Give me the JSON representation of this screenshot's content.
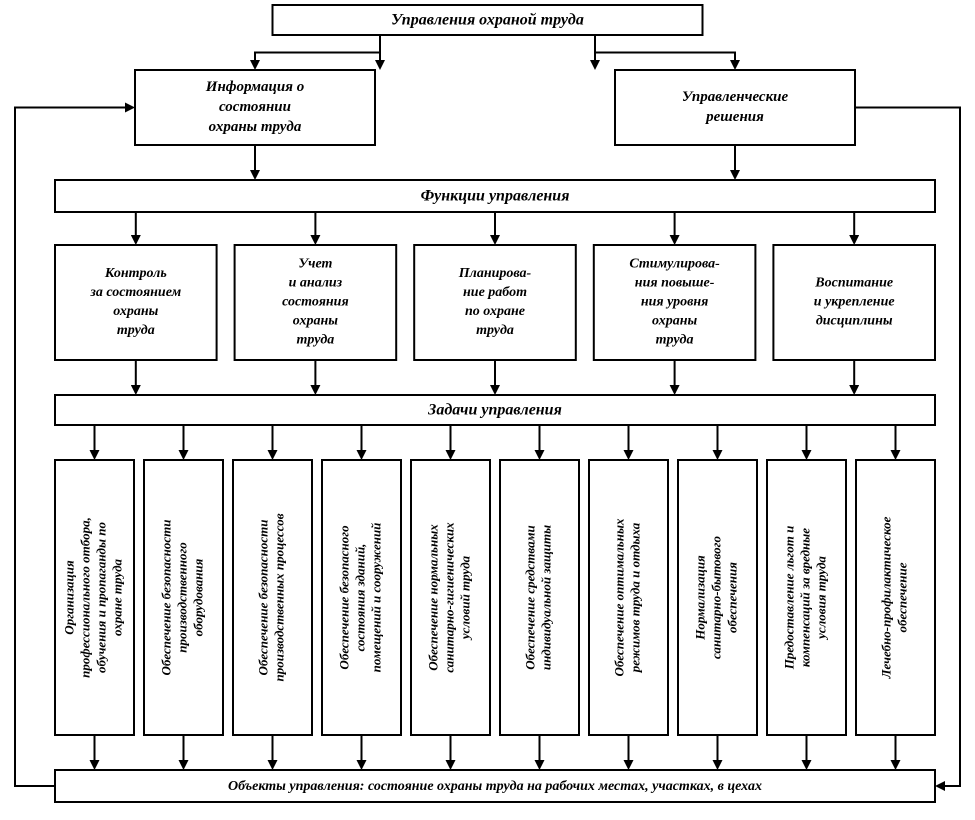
{
  "diagram": {
    "type": "flowchart",
    "background": "#ffffff",
    "stroke": "#000000",
    "stroke_width": 2,
    "font_family": "Times New Roman italic bold",
    "top": {
      "label": "Управления охраной труда",
      "fontsize": 16
    },
    "row2a": {
      "lines": [
        "Информация о",
        "состоянии",
        "охраны труда"
      ],
      "fontsize": 15
    },
    "row2b": {
      "lines": [
        "Управленческие",
        "решения"
      ],
      "fontsize": 15
    },
    "row3": {
      "label": "Функции управления",
      "fontsize": 16
    },
    "funcs": [
      {
        "lines": [
          "Контроль",
          "за состоянием",
          "охраны",
          "труда"
        ]
      },
      {
        "lines": [
          "Учет",
          "и анализ",
          "состояния",
          "охраны",
          "труда"
        ]
      },
      {
        "lines": [
          "Планирова-",
          "ние работ",
          "по охране",
          "труда"
        ]
      },
      {
        "lines": [
          "Стимулирова-",
          "ния повыше-",
          "ния уровня",
          "охраны",
          "труда"
        ]
      },
      {
        "lines": [
          "Воспитание",
          "и укрепление",
          "дисциплины"
        ]
      }
    ],
    "func_fontsize": 14,
    "tasks_header": {
      "label": "Задачи управления",
      "fontsize": 16
    },
    "tasks": [
      "Организация профессионального отбора, обучения и пропаганды по охране труда",
      "Обеспечение безопасности производственного оборудования",
      "Обеспечение безопасности производственных процессов",
      "Обеспечение безопасного состояния зданий, помещений и сооружений",
      "Обеспечение нормальных санитарно-гигиенических условий труда",
      "Обеспечение средствами индивидуальной защиты",
      "Обеспечение оптимальных режимов труда и отдыха",
      "Нормализация санитарно-бытового обеспечения",
      "Предоставление льгот и компенсаций за вредные условия труда",
      "Лечебно-профилактическое обеспечение"
    ],
    "task_fontsize": 13,
    "bottom": {
      "label": "Объекты управления: состояние охраны труда на рабочих местах, участках, в цехах",
      "fontsize": 14
    }
  }
}
